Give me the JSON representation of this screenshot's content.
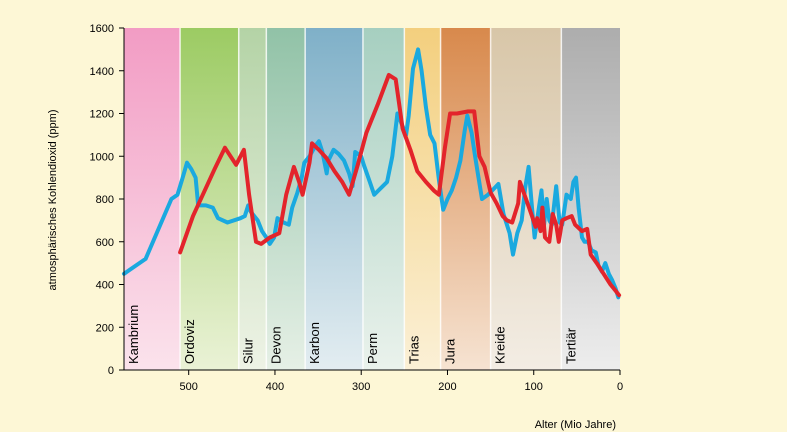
{
  "chart_data": {
    "type": "line",
    "title": "",
    "xlabel": "Alter (Mio Jahre)",
    "ylabel": "atmosphärisches Kohlendioxid (ppm)",
    "xlim": [
      575,
      0
    ],
    "ylim": [
      0,
      1600
    ],
    "x_ticks": [
      500,
      400,
      300,
      200,
      100,
      0
    ],
    "y_ticks": [
      0,
      200,
      400,
      600,
      800,
      1000,
      1200,
      1400,
      1600
    ],
    "colors": {
      "background": "#fdf7d6",
      "blue_series": "#1aa9df",
      "red_series": "#e3242b",
      "axis": "#000000"
    },
    "periods": [
      {
        "name": "Kambrium",
        "start": 575,
        "end": 510,
        "color_top": "#f29cc4",
        "color_bottom": "#fbe3ec"
      },
      {
        "name": "Ordoviz",
        "start": 510,
        "end": 442,
        "color_top": "#9ccb63",
        "color_bottom": "#eaf2d6"
      },
      {
        "name": "Silur",
        "start": 442,
        "end": 410,
        "color_top": "#b4d3a6",
        "color_bottom": "#eef3e6"
      },
      {
        "name": "Devon",
        "start": 410,
        "end": 365,
        "color_top": "#91c2a7",
        "color_bottom": "#e6f0e6"
      },
      {
        "name": "Karbon",
        "start": 365,
        "end": 298,
        "color_top": "#7fb0c8",
        "color_bottom": "#e3edf1"
      },
      {
        "name": "Perm",
        "start": 298,
        "end": 250,
        "color_top": "#a6cfc0",
        "color_bottom": "#eaf2ec"
      },
      {
        "name": "Trias",
        "start": 250,
        "end": 208,
        "color_top": "#f3cf7e",
        "color_bottom": "#fbf0d6"
      },
      {
        "name": "Jura",
        "start": 208,
        "end": 150,
        "color_top": "#d8894c",
        "color_bottom": "#f6e3d2"
      },
      {
        "name": "Kreide",
        "start": 150,
        "end": 68,
        "color_top": "#d8c6a8",
        "color_bottom": "#f3ede4"
      },
      {
        "name": "Tertiär",
        "start": 68,
        "end": 0,
        "color_top": "#adadad",
        "color_bottom": "#ededed"
      }
    ],
    "series": [
      {
        "color": "#1aa9df",
        "points": [
          [
            575,
            450
          ],
          [
            550,
            520
          ],
          [
            520,
            800
          ],
          [
            513,
            820
          ],
          [
            507,
            900
          ],
          [
            502,
            970
          ],
          [
            497,
            940
          ],
          [
            492,
            900
          ],
          [
            489,
            770
          ],
          [
            480,
            770
          ],
          [
            472,
            760
          ],
          [
            466,
            710
          ],
          [
            455,
            690
          ],
          [
            440,
            710
          ],
          [
            435,
            720
          ],
          [
            431,
            770
          ],
          [
            428,
            740
          ],
          [
            420,
            700
          ],
          [
            415,
            650
          ],
          [
            410,
            620
          ],
          [
            406,
            590
          ],
          [
            401,
            620
          ],
          [
            397,
            710
          ],
          [
            390,
            690
          ],
          [
            384,
            680
          ],
          [
            380,
            760
          ],
          [
            374,
            830
          ],
          [
            369,
            900
          ],
          [
            366,
            970
          ],
          [
            360,
            1000
          ],
          [
            353,
            1050
          ],
          [
            349,
            1070
          ],
          [
            345,
            1020
          ],
          [
            340,
            920
          ],
          [
            338,
            980
          ],
          [
            332,
            1030
          ],
          [
            326,
            1010
          ],
          [
            320,
            980
          ],
          [
            314,
            920
          ],
          [
            310,
            860
          ],
          [
            307,
            1020
          ],
          [
            300,
            1000
          ],
          [
            297,
            960
          ],
          [
            290,
            880
          ],
          [
            285,
            820
          ],
          [
            275,
            860
          ],
          [
            270,
            880
          ],
          [
            264,
            1000
          ],
          [
            258,
            1200
          ],
          [
            253,
            1150
          ],
          [
            248,
            1100
          ],
          [
            245,
            1190
          ],
          [
            240,
            1410
          ],
          [
            234,
            1500
          ],
          [
            230,
            1400
          ],
          [
            225,
            1230
          ],
          [
            220,
            1100
          ],
          [
            215,
            1060
          ],
          [
            210,
            890
          ],
          [
            205,
            750
          ],
          [
            200,
            800
          ],
          [
            195,
            840
          ],
          [
            190,
            900
          ],
          [
            185,
            980
          ],
          [
            180,
            1120
          ],
          [
            177,
            1190
          ],
          [
            172,
            1110
          ],
          [
            168,
            1000
          ],
          [
            164,
            900
          ],
          [
            160,
            800
          ],
          [
            153,
            820
          ],
          [
            148,
            840
          ],
          [
            141,
            870
          ],
          [
            135,
            730
          ],
          [
            128,
            640
          ],
          [
            124,
            540
          ],
          [
            119,
            640
          ],
          [
            114,
            700
          ],
          [
            110,
            850
          ],
          [
            106,
            950
          ],
          [
            102,
            760
          ],
          [
            99,
            620
          ],
          [
            94,
            760
          ],
          [
            91,
            840
          ],
          [
            88,
            680
          ],
          [
            85,
            800
          ],
          [
            82,
            700
          ],
          [
            79,
            680
          ],
          [
            74,
            860
          ],
          [
            70,
            690
          ],
          [
            67,
            680
          ],
          [
            62,
            820
          ],
          [
            57,
            800
          ],
          [
            54,
            880
          ],
          [
            51,
            900
          ],
          [
            48,
            760
          ],
          [
            44,
            620
          ],
          [
            41,
            600
          ],
          [
            37,
            600
          ],
          [
            33,
            560
          ],
          [
            28,
            550
          ],
          [
            25,
            490
          ],
          [
            21,
            460
          ],
          [
            17,
            500
          ],
          [
            13,
            450
          ],
          [
            9,
            420
          ],
          [
            5,
            380
          ],
          [
            2,
            340
          ]
        ]
      },
      {
        "color": "#e3242b",
        "points": [
          [
            510,
            550
          ],
          [
            495,
            720
          ],
          [
            470,
            940
          ],
          [
            458,
            1040
          ],
          [
            445,
            960
          ],
          [
            436,
            1030
          ],
          [
            430,
            820
          ],
          [
            422,
            600
          ],
          [
            416,
            590
          ],
          [
            406,
            620
          ],
          [
            395,
            640
          ],
          [
            387,
            820
          ],
          [
            378,
            950
          ],
          [
            372,
            880
          ],
          [
            368,
            820
          ],
          [
            360,
            970
          ],
          [
            357,
            1060
          ],
          [
            349,
            1030
          ],
          [
            340,
            990
          ],
          [
            331,
            930
          ],
          [
            322,
            880
          ],
          [
            314,
            820
          ],
          [
            304,
            960
          ],
          [
            294,
            1110
          ],
          [
            281,
            1240
          ],
          [
            268,
            1380
          ],
          [
            260,
            1360
          ],
          [
            252,
            1130
          ],
          [
            243,
            1030
          ],
          [
            235,
            930
          ],
          [
            225,
            880
          ],
          [
            216,
            840
          ],
          [
            210,
            820
          ],
          [
            203,
            1040
          ],
          [
            197,
            1200
          ],
          [
            189,
            1200
          ],
          [
            176,
            1210
          ],
          [
            169,
            1210
          ],
          [
            163,
            1000
          ],
          [
            157,
            950
          ],
          [
            150,
            830
          ],
          [
            143,
            780
          ],
          [
            136,
            720
          ],
          [
            131,
            700
          ],
          [
            125,
            690
          ],
          [
            118,
            780
          ],
          [
            116,
            880
          ],
          [
            109,
            800
          ],
          [
            102,
            720
          ],
          [
            98,
            670
          ],
          [
            96,
            710
          ],
          [
            92,
            650
          ],
          [
            90,
            760
          ],
          [
            87,
            620
          ],
          [
            82,
            600
          ],
          [
            78,
            730
          ],
          [
            74,
            680
          ],
          [
            71,
            600
          ],
          [
            67,
            700
          ],
          [
            62,
            710
          ],
          [
            56,
            720
          ],
          [
            52,
            680
          ],
          [
            44,
            650
          ],
          [
            38,
            660
          ],
          [
            34,
            540
          ],
          [
            27,
            500
          ],
          [
            19,
            450
          ],
          [
            11,
            400
          ],
          [
            5,
            370
          ],
          [
            1,
            350
          ]
        ]
      }
    ]
  }
}
